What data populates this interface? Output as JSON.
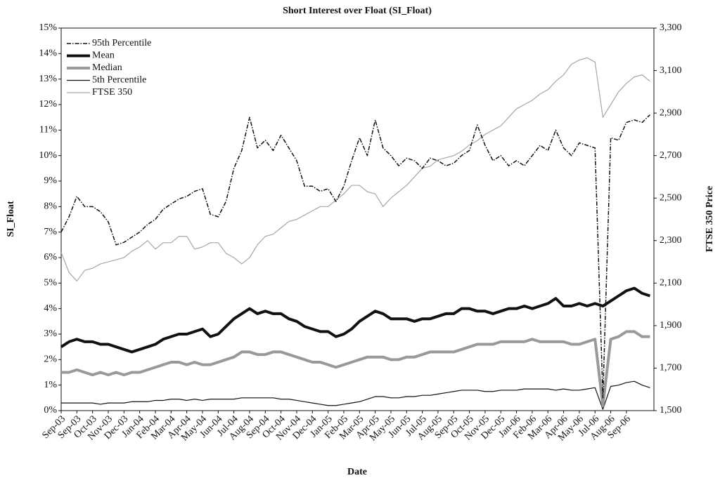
{
  "chart_data": {
    "type": "line",
    "title": "Short Interest over Float (SI_Float)",
    "x_label": "Date",
    "y_label": "SI_Float",
    "y2_label": "FTSE 350 Price",
    "categories": [
      "Sep-03",
      null,
      "Sep-03",
      null,
      "Oct-03",
      null,
      "Nov-03",
      null,
      "Dec-03",
      null,
      "Jan-04",
      null,
      "Feb-04",
      null,
      "Mar-04",
      null,
      "Apr-04",
      null,
      "May-04",
      null,
      "Jun-04",
      null,
      "Jul-04",
      null,
      "Aug-04",
      null,
      "Sep-04",
      null,
      "Oct-04",
      null,
      "Nov-04",
      null,
      "Dec-04",
      null,
      "Jan-05",
      null,
      "Feb-05",
      null,
      "Mar-05",
      null,
      "Apr-05",
      null,
      "May-05",
      null,
      "Jun-05",
      null,
      "Jul-05",
      null,
      "Aug-05",
      null,
      "Sep-05",
      null,
      "Oct-05",
      null,
      "Nov-05",
      null,
      "Dec-05",
      null,
      "Jan-06",
      null,
      "Feb-06",
      null,
      "Mar-06",
      null,
      "Apr-06",
      null,
      "May-06",
      null,
      "Jul-06",
      null,
      "Aug-06",
      null,
      "Sep-06",
      null,
      null,
      null
    ],
    "ylim": [
      0,
      15
    ],
    "yticks": [
      {
        "value": 0,
        "label": "0%"
      },
      {
        "value": 1,
        "label": "1%"
      },
      {
        "value": 2,
        "label": "2%"
      },
      {
        "value": 3,
        "label": "3%"
      },
      {
        "value": 4,
        "label": "4%"
      },
      {
        "value": 5,
        "label": "5%"
      },
      {
        "value": 6,
        "label": "6%"
      },
      {
        "value": 7,
        "label": "7%"
      },
      {
        "value": 8,
        "label": "8%"
      },
      {
        "value": 9,
        "label": "9%"
      },
      {
        "value": 10,
        "label": "10%"
      },
      {
        "value": 11,
        "label": "11%"
      },
      {
        "value": 12,
        "label": "12%"
      },
      {
        "value": 13,
        "label": "13%"
      },
      {
        "value": 14,
        "label": "14%"
      },
      {
        "value": 15,
        "label": "15%"
      }
    ],
    "y2lim": [
      1500,
      3300
    ],
    "y2ticks": [
      {
        "value": 1500,
        "label": "1,500"
      },
      {
        "value": 1700,
        "label": "1,700"
      },
      {
        "value": 1900,
        "label": "1,900"
      },
      {
        "value": 2100,
        "label": "2,100"
      },
      {
        "value": 2300,
        "label": "2,300"
      },
      {
        "value": 2500,
        "label": "2,500"
      },
      {
        "value": 2700,
        "label": "2,700"
      },
      {
        "value": 2900,
        "label": "2,900"
      },
      {
        "value": 3100,
        "label": "3,100"
      },
      {
        "value": 3300,
        "label": "3,300"
      }
    ],
    "grid": false,
    "legend": "top-left",
    "series": [
      {
        "name": "95th Percentile",
        "color": "#111111",
        "line_width": 1.5,
        "dash": "6,2,1.5,2",
        "values": [
          7.0,
          7.6,
          8.4,
          8.0,
          8.0,
          7.8,
          7.4,
          6.5,
          6.6,
          6.8,
          7.0,
          7.3,
          7.5,
          7.9,
          8.1,
          8.3,
          8.4,
          8.6,
          8.7,
          7.7,
          7.6,
          8.2,
          9.5,
          10.2,
          11.5,
          10.3,
          10.6,
          10.2,
          10.8,
          10.3,
          9.8,
          8.8,
          8.8,
          8.6,
          8.7,
          8.2,
          8.8,
          9.8,
          10.7,
          10.0,
          11.4,
          10.3,
          10.0,
          9.6,
          9.9,
          9.8,
          9.5,
          9.9,
          9.8,
          9.6,
          9.7,
          10.0,
          10.2,
          11.2,
          10.4,
          9.8,
          10.0,
          9.6,
          9.8,
          9.6,
          10.0,
          10.4,
          10.2,
          11.0,
          10.3,
          10.0,
          10.5,
          10.4,
          10.3,
          0.5,
          10.7,
          10.6,
          11.3,
          11.4,
          11.3,
          11.6
        ]
      },
      {
        "name": "Mean",
        "color": "#111111",
        "line_width": 4,
        "dash": "none",
        "values": [
          2.5,
          2.7,
          2.8,
          2.7,
          2.7,
          2.6,
          2.6,
          2.5,
          2.4,
          2.3,
          2.4,
          2.5,
          2.6,
          2.8,
          2.9,
          3.0,
          3.0,
          3.1,
          3.2,
          2.9,
          3.0,
          3.3,
          3.6,
          3.8,
          4.0,
          3.8,
          3.9,
          3.8,
          3.8,
          3.6,
          3.5,
          3.3,
          3.2,
          3.1,
          3.1,
          2.9,
          3.0,
          3.2,
          3.5,
          3.7,
          3.9,
          3.8,
          3.6,
          3.6,
          3.6,
          3.5,
          3.6,
          3.6,
          3.7,
          3.8,
          3.8,
          4.0,
          4.0,
          3.9,
          3.9,
          3.8,
          3.9,
          4.0,
          4.0,
          4.1,
          4.0,
          4.1,
          4.2,
          4.4,
          4.1,
          4.1,
          4.2,
          4.1,
          4.2,
          4.1,
          4.3,
          4.5,
          4.7,
          4.8,
          4.6,
          4.5
        ]
      },
      {
        "name": "Median",
        "color": "#999999",
        "line_width": 4,
        "dash": "none",
        "values": [
          1.5,
          1.5,
          1.6,
          1.5,
          1.4,
          1.5,
          1.4,
          1.5,
          1.4,
          1.5,
          1.5,
          1.6,
          1.7,
          1.8,
          1.9,
          1.9,
          1.8,
          1.9,
          1.8,
          1.8,
          1.9,
          2.0,
          2.1,
          2.3,
          2.3,
          2.2,
          2.2,
          2.3,
          2.3,
          2.2,
          2.1,
          2.0,
          1.9,
          1.9,
          1.8,
          1.7,
          1.8,
          1.9,
          2.0,
          2.1,
          2.1,
          2.1,
          2.0,
          2.0,
          2.1,
          2.1,
          2.2,
          2.3,
          2.3,
          2.3,
          2.3,
          2.4,
          2.5,
          2.6,
          2.6,
          2.6,
          2.7,
          2.7,
          2.7,
          2.7,
          2.8,
          2.7,
          2.7,
          2.7,
          2.7,
          2.6,
          2.6,
          2.7,
          2.8,
          0.2,
          2.8,
          2.9,
          3.1,
          3.1,
          2.9,
          2.9
        ]
      },
      {
        "name": "5th Percentile",
        "color": "#111111",
        "line_width": 1.2,
        "dash": "none",
        "values": [
          0.3,
          0.3,
          0.3,
          0.3,
          0.3,
          0.25,
          0.3,
          0.3,
          0.3,
          0.35,
          0.35,
          0.35,
          0.4,
          0.4,
          0.45,
          0.45,
          0.4,
          0.45,
          0.4,
          0.45,
          0.45,
          0.45,
          0.45,
          0.5,
          0.5,
          0.5,
          0.5,
          0.5,
          0.45,
          0.45,
          0.4,
          0.35,
          0.3,
          0.25,
          0.2,
          0.2,
          0.25,
          0.3,
          0.35,
          0.45,
          0.55,
          0.55,
          0.5,
          0.5,
          0.55,
          0.55,
          0.6,
          0.6,
          0.65,
          0.7,
          0.75,
          0.8,
          0.8,
          0.8,
          0.75,
          0.75,
          0.8,
          0.8,
          0.8,
          0.85,
          0.85,
          0.85,
          0.85,
          0.8,
          0.85,
          0.8,
          0.8,
          0.85,
          0.9,
          0.05,
          0.95,
          1.0,
          1.1,
          1.15,
          1.0,
          0.9
        ]
      },
      {
        "name": "FTSE 350",
        "color": "#a6a6a6",
        "line_width": 1.2,
        "dash": "none",
        "axis": "y2",
        "values": [
          2244,
          2150,
          2110,
          2160,
          2170,
          2190,
          2200,
          2210,
          2220,
          2250,
          2270,
          2300,
          2260,
          2290,
          2290,
          2320,
          2320,
          2260,
          2270,
          2290,
          2290,
          2240,
          2220,
          2190,
          2220,
          2280,
          2320,
          2330,
          2360,
          2390,
          2400,
          2420,
          2440,
          2460,
          2460,
          2490,
          2520,
          2560,
          2560,
          2530,
          2520,
          2460,
          2500,
          2530,
          2560,
          2600,
          2640,
          2650,
          2680,
          2690,
          2700,
          2720,
          2750,
          2770,
          2800,
          2820,
          2840,
          2880,
          2920,
          2940,
          2960,
          2990,
          3010,
          3050,
          3080,
          3130,
          3150,
          3160,
          3140,
          2880,
          2940,
          3000,
          3040,
          3070,
          3080,
          3050
        ]
      }
    ]
  }
}
